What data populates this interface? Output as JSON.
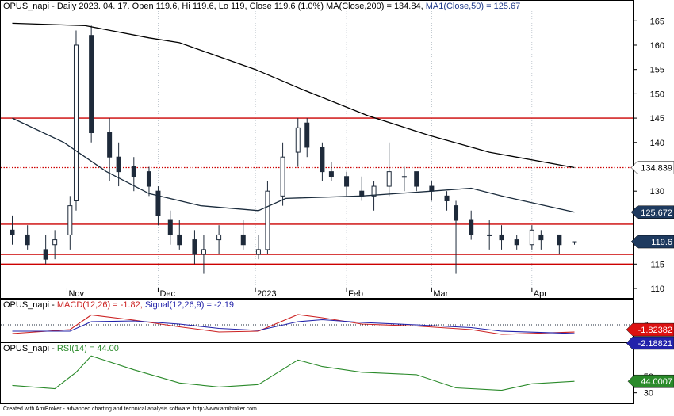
{
  "main_panel": {
    "header_prefix": "OPUS_napi - Daily 2023. 04. 17. Open 119.6, Hi 119.6, Lo 119, Close 119.6 (1.0%) ",
    "ma200_text": "MA(Close,200) = 134.84,",
    "ma50_text": " MA1(Close,50) = 125.67",
    "y_ticks": [
      "165",
      "160",
      "155",
      "150",
      "145",
      "140",
      "135",
      "130",
      "125",
      "120",
      "115",
      "110"
    ],
    "x_ticks": [
      "Nov",
      "Dec",
      "2023",
      "Feb",
      "Mar",
      "Apr"
    ],
    "badges": {
      "ma200": "134.839",
      "ma50": "125.672",
      "close": "119.6"
    }
  },
  "macd_panel": {
    "prefix": "OPUS_napi - ",
    "macd_text": "MACD(12,26) = -1.82,",
    "signal_text": " Signal(12,26,9) = -2.19",
    "y_tick": "0",
    "badges": {
      "macd": "-1.82382",
      "signal": "-2.18821"
    }
  },
  "rsi_panel": {
    "prefix": "OPUS_napi - ",
    "rsi_text": "RSI(14) = 44.00",
    "y_ticks": [
      "50",
      "30"
    ],
    "badge": "44.0007"
  },
  "footer": "Created with AmiBroker - advanced charting and technical analysis software. http://www.amibroker.com",
  "colors": {
    "ma200": "#000000",
    "ma50": "#1a2b3c",
    "macd": "#cc2222",
    "signal": "#2222aa",
    "rsi": "#2a8a2a",
    "hline_red": "#cc0000",
    "up_candle": "#ffffff",
    "down_candle": "#1e2a3a"
  },
  "chart_data": [
    {
      "type": "candlestick",
      "title": "OPUS_napi - Daily",
      "x": [
        "2022-10-14",
        "2022-10-19",
        "2022-10-25",
        "2022-10-28",
        "2022-11-02",
        "2022-11-04",
        "2022-11-09",
        "2022-11-15",
        "2022-11-18",
        "2022-11-23",
        "2022-11-28",
        "2022-12-01",
        "2022-12-05",
        "2022-12-08",
        "2022-12-13",
        "2022-12-16",
        "2022-12-21",
        "2022-12-29",
        "2023-01-03",
        "2023-01-06",
        "2023-01-11",
        "2023-01-16",
        "2023-01-19",
        "2023-01-24",
        "2023-01-27",
        "2023-02-01",
        "2023-02-06",
        "2023-02-10",
        "2023-02-15",
        "2023-02-20",
        "2023-02-24",
        "2023-03-01",
        "2023-03-06",
        "2023-03-09",
        "2023-03-14",
        "2023-03-20",
        "2023-03-24",
        "2023-03-29",
        "2023-04-03",
        "2023-04-06",
        "2023-04-12",
        "2023-04-17"
      ],
      "open": [
        122,
        121,
        118,
        119,
        121,
        128,
        162,
        142,
        137,
        135,
        134,
        130,
        124,
        121,
        120,
        117,
        120,
        121,
        117,
        118,
        129,
        138,
        144,
        139,
        134,
        133,
        130,
        129,
        131,
        133,
        134,
        131,
        129,
        127,
        124,
        121,
        121,
        120,
        119,
        121,
        121,
        119.6
      ],
      "high": [
        125,
        123,
        121,
        122,
        129,
        163,
        164,
        145,
        140,
        137,
        135,
        131,
        126,
        124,
        122,
        121,
        123,
        124,
        121,
        132,
        140,
        145,
        145,
        140,
        136,
        134,
        133,
        132,
        140,
        135,
        134,
        132,
        130,
        128,
        126,
        124,
        123,
        121,
        123,
        122,
        121,
        119.6
      ],
      "low": [
        119,
        118,
        115,
        116,
        118,
        126,
        140,
        132,
        131,
        130,
        129,
        123,
        119,
        118,
        115,
        113,
        117,
        118,
        116,
        117,
        127,
        135,
        137,
        132,
        132,
        129,
        128,
        126,
        129,
        130,
        130,
        128,
        126,
        113,
        120,
        118,
        118,
        118,
        118,
        118,
        117,
        119
      ],
      "close": [
        121,
        119,
        116,
        120,
        127,
        160,
        142,
        137,
        134,
        133,
        131,
        125,
        121,
        119,
        117,
        118,
        121,
        119,
        118,
        130,
        137,
        143,
        139,
        134,
        133,
        131,
        129,
        131,
        134,
        133,
        131,
        130,
        128,
        124,
        121,
        121,
        120,
        119,
        122,
        120,
        119,
        119.6
      ],
      "ylim": [
        110,
        167
      ],
      "x_tick_labels": [
        "Nov",
        "Dec",
        "2023",
        "Feb",
        "Mar",
        "Apr"
      ],
      "horizontal_levels": [
        145,
        134.839,
        123.2,
        117,
        115
      ],
      "series": [
        {
          "name": "MA(Close,200)",
          "x": [
            "2022-10-14",
            "2022-11-07",
            "2022-11-28",
            "2022-12-08",
            "2023-01-02",
            "2023-01-17",
            "2023-02-08",
            "2023-02-28",
            "2023-03-20",
            "2023-04-17"
          ],
          "values": [
            164.5,
            164,
            161.5,
            160.5,
            155,
            151,
            145.5,
            141.5,
            138,
            134.839
          ]
        },
        {
          "name": "MA1(Close,50)",
          "x": [
            "2022-10-14",
            "2022-10-31",
            "2022-11-14",
            "2022-11-28",
            "2022-12-15",
            "2023-01-03",
            "2023-01-12",
            "2023-02-06",
            "2023-03-01",
            "2023-03-14",
            "2023-03-24",
            "2023-04-17"
          ],
          "values": [
            145,
            140,
            134,
            129.5,
            127,
            126,
            128.5,
            129,
            130,
            130.6,
            129,
            125.672
          ]
        }
      ]
    },
    {
      "type": "line",
      "title": "MACD(12,26)",
      "x": [
        "2022-10-14",
        "2022-11-02",
        "2022-11-09",
        "2022-11-23",
        "2022-12-08",
        "2022-12-21",
        "2023-01-03",
        "2023-01-16",
        "2023-01-24",
        "2023-02-06",
        "2023-02-24",
        "2023-03-14",
        "2023-03-24",
        "2023-04-17"
      ],
      "series": [
        {
          "name": "MACD(12,26)",
          "values": [
            -2.2,
            -1.2,
            2.5,
            1.2,
            -0.5,
            -1.8,
            -1.6,
            2.6,
            1.8,
            0.2,
            -0.3,
            -1.2,
            -2.4,
            -1.82382
          ]
        },
        {
          "name": "Signal(12,26,9)",
          "values": [
            -1.6,
            -1.6,
            0.8,
            1.0,
            0.2,
            -0.9,
            -1.4,
            0.8,
            1.3,
            0.6,
            0.0,
            -0.7,
            -1.6,
            -2.18821
          ]
        }
      ],
      "ylim": [
        -4,
        4
      ]
    },
    {
      "type": "line",
      "title": "RSI(14)",
      "x": [
        "2022-10-14",
        "2022-10-28",
        "2022-11-04",
        "2022-11-09",
        "2022-11-23",
        "2022-12-08",
        "2022-12-21",
        "2023-01-03",
        "2023-01-16",
        "2023-01-24",
        "2023-02-06",
        "2023-02-24",
        "2023-03-09",
        "2023-03-24",
        "2023-04-03",
        "2023-04-17"
      ],
      "series": [
        {
          "name": "RSI(14)",
          "values": [
            39,
            35,
            55,
            75,
            58,
            42,
            37,
            40,
            70,
            62,
            55,
            52,
            36,
            33,
            41,
            44.0007
          ]
        }
      ],
      "ylim": [
        20,
        80
      ],
      "y_ticks": [
        50,
        30
      ]
    }
  ]
}
